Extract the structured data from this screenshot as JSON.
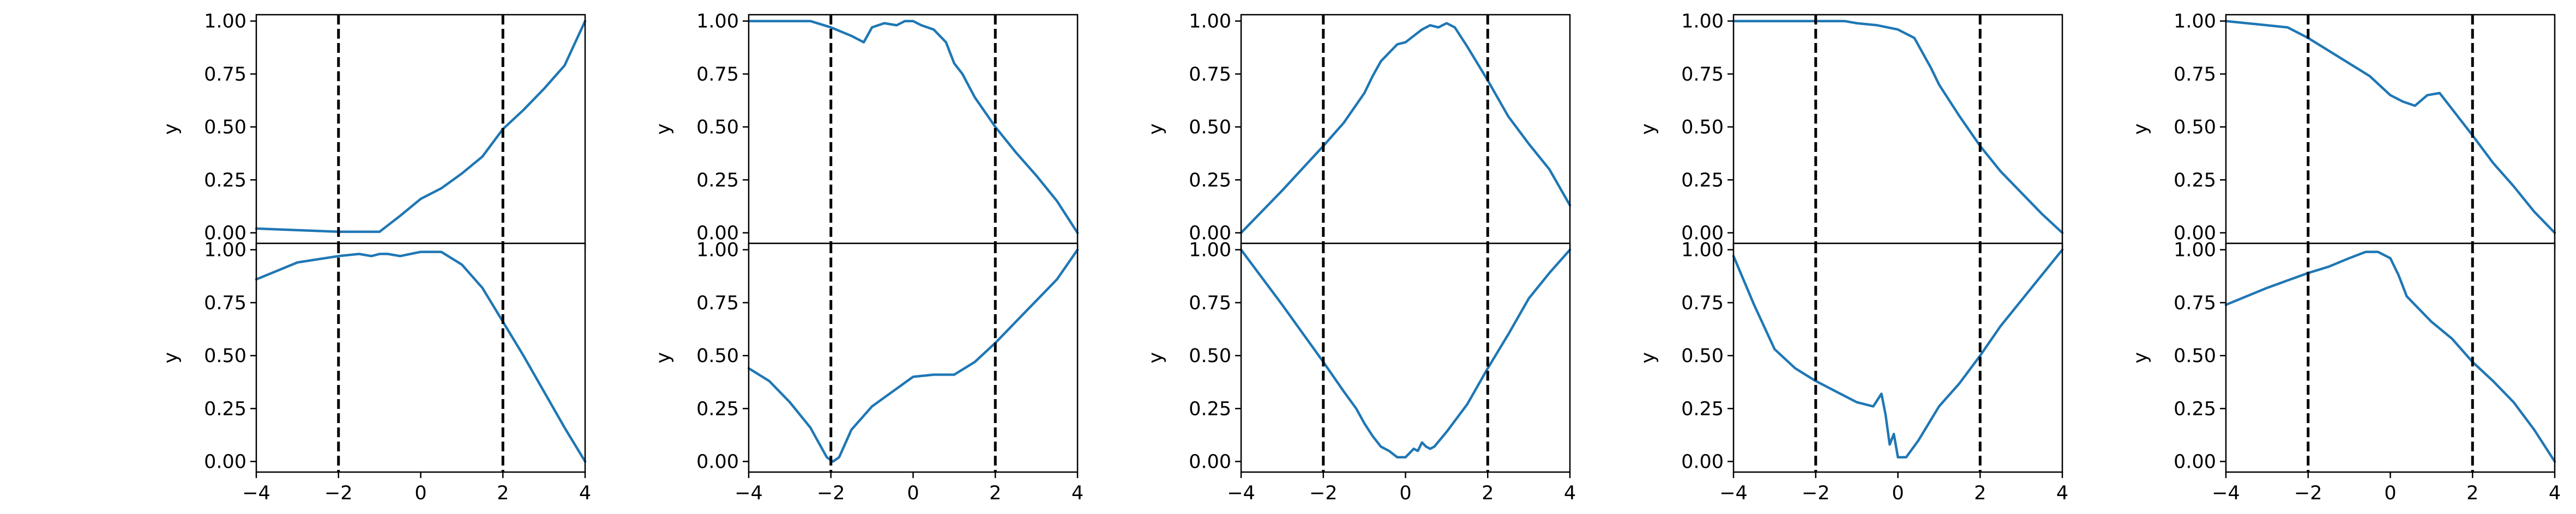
{
  "figure": {
    "line_color": "#1f77b4",
    "vline_color": "#000000",
    "axis_color": "#000000"
  },
  "chart_data": [
    {
      "type": "line",
      "ylabel": "y",
      "xlim": [
        -4,
        4
      ],
      "ylim": [
        -0.05,
        1.03
      ],
      "xticks": [
        -4,
        -2,
        0,
        2,
        4
      ],
      "xtick_labels_shown": false,
      "yticks": [
        0.0,
        0.25,
        0.5,
        0.75,
        1.0
      ],
      "vlines": [
        -2,
        2
      ],
      "series": [
        {
          "x": [
            -4,
            -2,
            -1,
            -0.5,
            0,
            0.5,
            1,
            1.5,
            2,
            2.5,
            3,
            3.5,
            4
          ],
          "y": [
            0.02,
            0.005,
            0.005,
            0.08,
            0.16,
            0.21,
            0.28,
            0.36,
            0.49,
            0.58,
            0.68,
            0.79,
            1.0
          ]
        }
      ]
    },
    {
      "type": "line",
      "ylabel": "y",
      "xlim": [
        -4,
        4
      ],
      "ylim": [
        -0.05,
        1.03
      ],
      "xticks": [
        -4,
        -2,
        0,
        2,
        4
      ],
      "xtick_labels_shown": false,
      "yticks": [
        0.0,
        0.25,
        0.5,
        0.75,
        1.0
      ],
      "vlines": [
        -2,
        2
      ],
      "series": [
        {
          "x": [
            -4,
            -2.5,
            -2,
            -1.5,
            -1.2,
            -1,
            -0.7,
            -0.4,
            -0.2,
            0,
            0.2,
            0.5,
            0.8,
            1,
            1.2,
            1.5,
            2,
            2.5,
            3,
            3.5,
            4
          ],
          "y": [
            1.0,
            1.0,
            0.97,
            0.93,
            0.9,
            0.97,
            0.99,
            0.98,
            1.0,
            1.0,
            0.98,
            0.96,
            0.9,
            0.8,
            0.75,
            0.64,
            0.5,
            0.38,
            0.27,
            0.15,
            0.0
          ]
        }
      ]
    },
    {
      "type": "line",
      "ylabel": "y",
      "xlim": [
        -4,
        4
      ],
      "ylim": [
        -0.05,
        1.03
      ],
      "xticks": [
        -4,
        -2,
        0,
        2,
        4
      ],
      "xtick_labels_shown": false,
      "yticks": [
        0.0,
        0.25,
        0.5,
        0.75,
        1.0
      ],
      "vlines": [
        -2,
        2
      ],
      "series": [
        {
          "x": [
            -4,
            -3,
            -2,
            -1.5,
            -1,
            -0.8,
            -0.6,
            -0.4,
            -0.2,
            0,
            0.2,
            0.4,
            0.6,
            0.8,
            1,
            1.2,
            1.5,
            2,
            2.5,
            3,
            3.5,
            4
          ],
          "y": [
            0.0,
            0.2,
            0.41,
            0.52,
            0.66,
            0.74,
            0.81,
            0.85,
            0.89,
            0.9,
            0.93,
            0.96,
            0.98,
            0.97,
            0.99,
            0.97,
            0.88,
            0.72,
            0.55,
            0.42,
            0.3,
            0.13
          ]
        }
      ]
    },
    {
      "type": "line",
      "ylabel": "y",
      "xlim": [
        -4,
        4
      ],
      "ylim": [
        -0.05,
        1.03
      ],
      "xticks": [
        -4,
        -2,
        0,
        2,
        4
      ],
      "xtick_labels_shown": false,
      "yticks": [
        0.0,
        0.25,
        0.5,
        0.75,
        1.0
      ],
      "vlines": [
        -2,
        2
      ],
      "series": [
        {
          "x": [
            -4,
            -2,
            -1.3,
            -1,
            -0.5,
            0,
            0.4,
            0.8,
            1,
            1.5,
            2,
            2.5,
            3,
            3.5,
            4
          ],
          "y": [
            1.0,
            1.0,
            1.0,
            0.99,
            0.98,
            0.96,
            0.92,
            0.78,
            0.7,
            0.55,
            0.41,
            0.29,
            0.19,
            0.09,
            0.0
          ]
        }
      ]
    },
    {
      "type": "line",
      "ylabel": "y",
      "xlim": [
        -4,
        4
      ],
      "ylim": [
        -0.05,
        1.03
      ],
      "xticks": [
        -4,
        -2,
        0,
        2,
        4
      ],
      "xtick_labels_shown": false,
      "yticks": [
        0.0,
        0.25,
        0.5,
        0.75,
        1.0
      ],
      "vlines": [
        -2,
        2
      ],
      "series": [
        {
          "x": [
            -4,
            -3,
            -2.5,
            -2,
            -1.5,
            -1,
            -0.5,
            0,
            0.3,
            0.6,
            0.9,
            1.2,
            1.6,
            2,
            2.5,
            3,
            3.5,
            4
          ],
          "y": [
            1.0,
            0.98,
            0.97,
            0.92,
            0.86,
            0.8,
            0.74,
            0.65,
            0.62,
            0.6,
            0.65,
            0.66,
            0.56,
            0.46,
            0.33,
            0.22,
            0.1,
            0.0
          ]
        }
      ]
    },
    {
      "type": "line",
      "ylabel": "y",
      "xlim": [
        -4,
        4
      ],
      "ylim": [
        -0.05,
        1.03
      ],
      "xticks": [
        -4,
        -2,
        0,
        2,
        4
      ],
      "xtick_labels_shown": true,
      "yticks": [
        0.0,
        0.25,
        0.5,
        0.75,
        1.0
      ],
      "vlines": [
        -2,
        2
      ],
      "series": [
        {
          "x": [
            -4,
            -3,
            -2,
            -1.5,
            -1.2,
            -1,
            -0.8,
            -0.5,
            0,
            0.5,
            1,
            1.5,
            2,
            2.5,
            3,
            3.5,
            4
          ],
          "y": [
            0.86,
            0.94,
            0.97,
            0.98,
            0.97,
            0.98,
            0.98,
            0.97,
            0.99,
            0.99,
            0.93,
            0.82,
            0.66,
            0.5,
            0.33,
            0.16,
            0.0
          ]
        }
      ]
    },
    {
      "type": "line",
      "ylabel": "y",
      "xlim": [
        -4,
        4
      ],
      "ylim": [
        -0.05,
        1.03
      ],
      "xticks": [
        -4,
        -2,
        0,
        2,
        4
      ],
      "xtick_labels_shown": true,
      "yticks": [
        0.0,
        0.25,
        0.5,
        0.75,
        1.0
      ],
      "vlines": [
        -2,
        2
      ],
      "series": [
        {
          "x": [
            -4,
            -3.5,
            -3,
            -2.5,
            -2.1,
            -1.95,
            -1.8,
            -1.5,
            -1,
            -0.5,
            0,
            0.5,
            1,
            1.5,
            2,
            2.5,
            3,
            3.5,
            4
          ],
          "y": [
            0.44,
            0.38,
            0.28,
            0.16,
            0.02,
            0.0,
            0.02,
            0.15,
            0.26,
            0.33,
            0.4,
            0.41,
            0.41,
            0.47,
            0.56,
            0.66,
            0.76,
            0.86,
            1.0
          ]
        }
      ]
    },
    {
      "type": "line",
      "ylabel": "y",
      "xlim": [
        -4,
        4
      ],
      "ylim": [
        -0.05,
        1.03
      ],
      "xticks": [
        -4,
        -2,
        0,
        2,
        4
      ],
      "xtick_labels_shown": true,
      "yticks": [
        0.0,
        0.25,
        0.5,
        0.75,
        1.0
      ],
      "vlines": [
        -2,
        2
      ],
      "series": [
        {
          "x": [
            -4,
            -3,
            -2,
            -1.5,
            -1.2,
            -1,
            -0.8,
            -0.6,
            -0.4,
            -0.2,
            0,
            0.2,
            0.3,
            0.4,
            0.5,
            0.6,
            0.7,
            1,
            1.5,
            2,
            2.5,
            3,
            3.5,
            4
          ],
          "y": [
            1.0,
            0.74,
            0.47,
            0.33,
            0.25,
            0.18,
            0.12,
            0.07,
            0.05,
            0.02,
            0.02,
            0.06,
            0.05,
            0.09,
            0.07,
            0.06,
            0.07,
            0.14,
            0.27,
            0.44,
            0.6,
            0.77,
            0.89,
            1.0
          ]
        }
      ]
    },
    {
      "type": "line",
      "ylabel": "y",
      "xlim": [
        -4,
        4
      ],
      "ylim": [
        -0.05,
        1.03
      ],
      "xticks": [
        -4,
        -2,
        0,
        2,
        4
      ],
      "xtick_labels_shown": true,
      "yticks": [
        0.0,
        0.25,
        0.5,
        0.75,
        1.0
      ],
      "vlines": [
        -2,
        2
      ],
      "series": [
        {
          "x": [
            -4,
            -3.5,
            -3,
            -2.5,
            -2,
            -1.5,
            -1,
            -0.6,
            -0.4,
            -0.3,
            -0.2,
            -0.1,
            0,
            0.2,
            0.5,
            1,
            1.5,
            2,
            2.5,
            3,
            3.5,
            4
          ],
          "y": [
            0.97,
            0.74,
            0.53,
            0.44,
            0.38,
            0.33,
            0.28,
            0.26,
            0.32,
            0.22,
            0.08,
            0.13,
            0.02,
            0.02,
            0.1,
            0.26,
            0.37,
            0.5,
            0.64,
            0.76,
            0.88,
            1.0
          ]
        }
      ]
    },
    {
      "type": "line",
      "ylabel": "y",
      "xlim": [
        -4,
        4
      ],
      "ylim": [
        -0.05,
        1.03
      ],
      "xticks": [
        -4,
        -2,
        0,
        2,
        4
      ],
      "xtick_labels_shown": true,
      "yticks": [
        0.0,
        0.25,
        0.5,
        0.75,
        1.0
      ],
      "vlines": [
        -2,
        2
      ],
      "series": [
        {
          "x": [
            -4,
            -3,
            -2,
            -1.5,
            -1,
            -0.6,
            -0.3,
            0,
            0.2,
            0.4,
            0.6,
            1,
            1.5,
            2,
            2.5,
            3,
            3.5,
            4
          ],
          "y": [
            0.74,
            0.82,
            0.89,
            0.92,
            0.96,
            0.99,
            0.99,
            0.96,
            0.88,
            0.78,
            0.74,
            0.66,
            0.58,
            0.47,
            0.38,
            0.28,
            0.15,
            0.0
          ]
        }
      ]
    }
  ]
}
